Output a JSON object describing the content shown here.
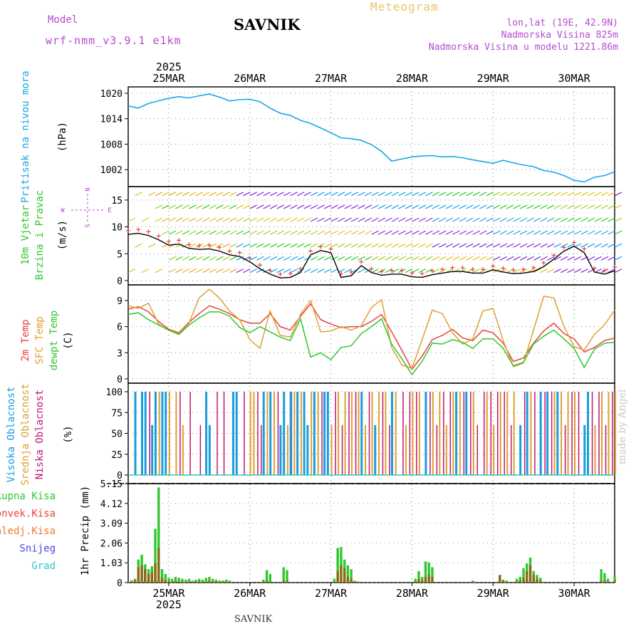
{
  "header": {
    "model_label": "Model",
    "model_name": "wrf-nmm_v3.9.1 e1km",
    "station": "SAVNIK",
    "chart_kind": "Meteogram",
    "lonlat": "lon,lat (19E, 42.9N)",
    "elevation": "Nadmorska Visina 825m",
    "model_elevation": "Nadmorska Visina u modelu 1221.86m",
    "footer_station": "SAVNIK",
    "credit": "made by Angel"
  },
  "time_axis": {
    "year": "2025",
    "days": [
      "25MAR",
      "26MAR",
      "27MAR",
      "28MAR",
      "29MAR",
      "30MAR"
    ],
    "start_hour_offset": -12,
    "end_hour": 132
  },
  "colors": {
    "pressure": "#1aa7e6",
    "temp2m": "#e8433b",
    "sfc": "#e0a030",
    "dewpt": "#2ec82e",
    "high_cloud": "#1c9cdc",
    "mid_cloud": "#e0a030",
    "low_cloud": "#c0166e",
    "total_precip": "#2ec82e",
    "conv_precip": "#8b6914",
    "wind_label": "#2ec82e",
    "dir_legend": "#b44bd0"
  },
  "panels": {
    "pressure": {
      "label": "Pritisak na nivou mora",
      "unit": "(hPa)",
      "ticks": [
        "1020",
        "1014",
        "1008",
        "1002"
      ]
    },
    "wind": {
      "label1": "10m Vjetar",
      "label2": "Brzina i Pravac",
      "unit": "(m/s)",
      "ticks": [
        "15",
        "10",
        "5",
        "0"
      ],
      "dir_n": "N",
      "dir_s": "S",
      "dir_w": "W",
      "dir_e": "E"
    },
    "temp": {
      "label_2m": "2m Temp",
      "label_sfc": "SFC Temp",
      "label_dew": "dewpt Temp",
      "unit": "(C)",
      "ticks": [
        "9",
        "6",
        "3",
        "0"
      ]
    },
    "cloud": {
      "label_high": "Visoka Oblacnost",
      "label_mid": "Srednja Oblacnost",
      "label_low": "Niska Oblacnost",
      "unit": "(%)",
      "ticks": [
        "100",
        "75",
        "50",
        "25",
        "0"
      ]
    },
    "precip": {
      "label": "1hr Precip (mm)",
      "ticks": [
        "5.15",
        "4.12",
        "3.09",
        "2.06",
        "1.03",
        "0"
      ],
      "legend": [
        "Ukupna Kisa",
        "Konvek.Kisa",
        "Zaledj.Kisa",
        "Snijeg",
        "Grad"
      ],
      "legend_colors": [
        "#2ec82e",
        "#e8433b",
        "#f07830",
        "#4646e0",
        "#2ec8c8"
      ]
    }
  },
  "chart_data": {
    "type": "line",
    "x_unit": "hours since 25MAR 00UTC",
    "pressure": {
      "ylim": [
        998,
        1021.5
      ],
      "x": [
        -12,
        -9,
        -6,
        -3,
        0,
        3,
        6,
        9,
        12,
        15,
        18,
        21,
        24,
        27,
        30,
        33,
        36,
        39,
        42,
        45,
        48,
        51,
        54,
        57,
        60,
        63,
        66,
        69,
        72,
        75,
        78,
        81,
        84,
        87,
        90,
        93,
        96,
        99,
        102,
        105,
        108,
        111,
        114,
        117,
        120,
        123,
        126,
        129,
        132
      ],
      "values": [
        1017,
        1016.5,
        1017.6,
        1018.2,
        1018.8,
        1019.2,
        1018.9,
        1019.4,
        1019.8,
        1019.1,
        1018.2,
        1018.5,
        1018.6,
        1018.0,
        1016.5,
        1015.3,
        1014.8,
        1013.6,
        1012.9,
        1011.8,
        1010.7,
        1009.5,
        1009.3,
        1008.9,
        1007.9,
        1006.3,
        1004.0,
        1004.5,
        1005.0,
        1005.2,
        1005.3,
        1005.0,
        1005.1,
        1004.8,
        1004.3,
        1003.9,
        1003.5,
        1004.2,
        1003.6,
        1003.1,
        1002.7,
        1001.8,
        1001.4,
        1000.6,
        999.5,
        999.1,
        1000.2,
        1000.6,
        1001.5
      ]
    },
    "wind_speed": {
      "ylim": [
        -0.8,
        17.5
      ],
      "x": [
        -12,
        -9,
        -6,
        -3,
        0,
        3,
        6,
        9,
        12,
        15,
        18,
        21,
        24,
        27,
        30,
        33,
        36,
        39,
        42,
        45,
        48,
        51,
        54,
        57,
        60,
        63,
        66,
        69,
        72,
        75,
        78,
        81,
        84,
        87,
        90,
        93,
        96,
        99,
        102,
        105,
        108,
        111,
        114,
        117,
        120,
        123,
        126,
        129,
        132
      ],
      "values": [
        8.6,
        8.8,
        8.4,
        7.6,
        6.6,
        6.8,
        6.0,
        5.8,
        5.9,
        5.5,
        4.8,
        4.5,
        3.5,
        2.2,
        1.2,
        0.5,
        0.6,
        1.5,
        4.8,
        5.6,
        5.2,
        0.6,
        0.9,
        2.8,
        1.5,
        1.0,
        1.2,
        1.2,
        0.7,
        0.6,
        1.1,
        1.4,
        1.7,
        1.7,
        1.4,
        1.4,
        2.0,
        1.6,
        1.3,
        1.4,
        1.7,
        2.6,
        4.0,
        5.5,
        6.4,
        5.2,
        1.6,
        1.2,
        1.8
      ]
    },
    "temperature": {
      "ylim": [
        -0.5,
        10.8
      ],
      "x": [
        -12,
        -9,
        -6,
        -3,
        0,
        3,
        6,
        9,
        12,
        15,
        18,
        21,
        24,
        27,
        30,
        33,
        36,
        39,
        42,
        45,
        48,
        51,
        54,
        57,
        60,
        63,
        66,
        69,
        72,
        75,
        78,
        81,
        84,
        87,
        90,
        93,
        96,
        99,
        102,
        105,
        108,
        111,
        114,
        117,
        120,
        123,
        126,
        129,
        132
      ],
      "series": [
        {
          "name": "2m Temp",
          "values": [
            8.0,
            8.3,
            7.7,
            6.6,
            5.7,
            5.3,
            6.5,
            7.5,
            8.4,
            8.0,
            7.5,
            6.8,
            6.4,
            6.4,
            7.5,
            6.0,
            5.6,
            7.2,
            8.6,
            6.8,
            6.3,
            5.9,
            6.0,
            6.0,
            6.6,
            7.4,
            5.4,
            3.3,
            1.1,
            2.6,
            4.5,
            5.0,
            5.7,
            4.7,
            4.4,
            5.6,
            5.3,
            4.1,
            2.0,
            2.4,
            4.1,
            5.5,
            6.4,
            5.2,
            4.6,
            3.1,
            3.6,
            4.4,
            4.7
          ]
        },
        {
          "name": "SFC Temp",
          "values": [
            8.4,
            8.1,
            8.7,
            6.3,
            5.6,
            5.2,
            6.4,
            9.3,
            10.3,
            9.3,
            7.8,
            6.8,
            4.5,
            3.5,
            7.8,
            5.0,
            4.8,
            7.4,
            9.0,
            5.4,
            5.5,
            6.0,
            5.6,
            6.1,
            8.2,
            9.1,
            3.6,
            1.6,
            1.2,
            4.5,
            7.9,
            7.5,
            5.3,
            4.0,
            4.6,
            7.8,
            8.1,
            4.4,
            1.4,
            1.8,
            5.6,
            9.5,
            9.3,
            6.0,
            3.7,
            3.3,
            5.1,
            6.2,
            7.9
          ]
        },
        {
          "name": "dewpt Temp",
          "values": [
            7.4,
            7.6,
            6.8,
            6.2,
            5.6,
            5.1,
            6.2,
            7.0,
            7.7,
            7.7,
            7.2,
            5.9,
            5.3,
            6.0,
            5.4,
            4.8,
            4.4,
            6.9,
            2.5,
            3.0,
            2.2,
            3.6,
            3.8,
            5.2,
            6.0,
            6.9,
            4.0,
            2.3,
            0.5,
            2.0,
            4.1,
            4.0,
            4.5,
            4.2,
            3.5,
            4.6,
            4.6,
            3.5,
            1.5,
            1.9,
            4.0,
            4.9,
            5.6,
            4.6,
            3.5,
            1.3,
            3.4,
            4.1,
            4.2
          ]
        }
      ]
    },
    "cloud_cover": {
      "ylim": [
        0,
        100
      ],
      "bar_hours_high": [
        -10,
        -8,
        -7,
        -5,
        -4,
        -2,
        -1,
        11,
        12,
        19,
        20,
        28,
        30,
        33,
        34,
        36,
        38,
        40,
        41,
        43,
        46,
        47,
        57,
        61,
        66,
        76,
        85,
        88,
        104,
        106,
        110,
        112,
        115,
        123,
        124
      ],
      "bar_hours_mid": [
        -3,
        0,
        2,
        4,
        24,
        25,
        29,
        31,
        35,
        37,
        39,
        42,
        44,
        48,
        50,
        52,
        54,
        56,
        58,
        60,
        62,
        64,
        67,
        70,
        72,
        74,
        78,
        80,
        82,
        84,
        86,
        90,
        94,
        96,
        98,
        100,
        102,
        107,
        110,
        114,
        116,
        118,
        120,
        126,
        128,
        130,
        132
      ],
      "bar_hours_low": [
        -6,
        3,
        6,
        9,
        14,
        16,
        22,
        26,
        27,
        32,
        36,
        45,
        49,
        51,
        53,
        55,
        59,
        63,
        65,
        69,
        71,
        73,
        77,
        79,
        81,
        83,
        87,
        89,
        91,
        93,
        95,
        97,
        99,
        101,
        105,
        108,
        111,
        113,
        117,
        119,
        121,
        125,
        127,
        129,
        131
      ]
    },
    "precip": {
      "ylim": [
        0,
        5.15
      ],
      "x": [
        -11,
        -10,
        -9,
        -8,
        -7,
        -6,
        -5,
        -4,
        -3,
        -2,
        -1,
        0,
        1,
        2,
        3,
        4,
        5,
        6,
        7,
        8,
        9,
        10,
        11,
        12,
        13,
        14,
        15,
        16,
        17,
        18,
        28,
        29,
        30,
        34,
        35,
        49,
        50,
        51,
        52,
        53,
        54,
        55,
        56,
        73,
        74,
        75,
        76,
        77,
        78,
        90,
        98,
        99,
        100,
        103,
        104,
        105,
        106,
        107,
        108,
        109,
        110,
        128,
        129,
        130,
        132
      ],
      "total": [
        0.12,
        0.2,
        1.2,
        1.45,
        0.95,
        0.7,
        0.85,
        2.8,
        4.95,
        0.7,
        0.45,
        0.25,
        0.2,
        0.3,
        0.25,
        0.2,
        0.15,
        0.2,
        0.1,
        0.15,
        0.2,
        0.15,
        0.25,
        0.3,
        0.2,
        0.15,
        0.1,
        0.1,
        0.15,
        0.1,
        0.15,
        0.65,
        0.45,
        0.8,
        0.65,
        0.2,
        1.8,
        1.85,
        1.2,
        0.9,
        0.7,
        0.1,
        0.05,
        0.2,
        0.6,
        0.3,
        1.1,
        1.05,
        0.8,
        0.1,
        0.3,
        0.15,
        0.1,
        0.2,
        0.3,
        0.75,
        1.0,
        1.3,
        0.6,
        0.4,
        0.25,
        0.7,
        0.5,
        0.2,
        0.3
      ],
      "convective": [
        0.05,
        0.1,
        0.8,
        0.9,
        0.7,
        0.45,
        0.55,
        1.0,
        1.8,
        0.25,
        0.15,
        0.05,
        0.05,
        0.1,
        0.05,
        0.05,
        0.05,
        0.05,
        0.05,
        0.05,
        0.05,
        0.05,
        0.05,
        0.1,
        0.05,
        0.05,
        0.05,
        0.05,
        0.05,
        0.05,
        0.05,
        0.1,
        0.05,
        0.1,
        0.1,
        0.05,
        0.6,
        0.9,
        0.75,
        0.3,
        0.2,
        0.05,
        0.05,
        0.05,
        0.2,
        0.1,
        0.3,
        0.4,
        0.3,
        0.05,
        0.4,
        0.1,
        0.05,
        0.05,
        0.1,
        0.25,
        0.6,
        0.9,
        0.4,
        0.2,
        0.1,
        0.1,
        0.1,
        0.05,
        0.1
      ]
    }
  }
}
